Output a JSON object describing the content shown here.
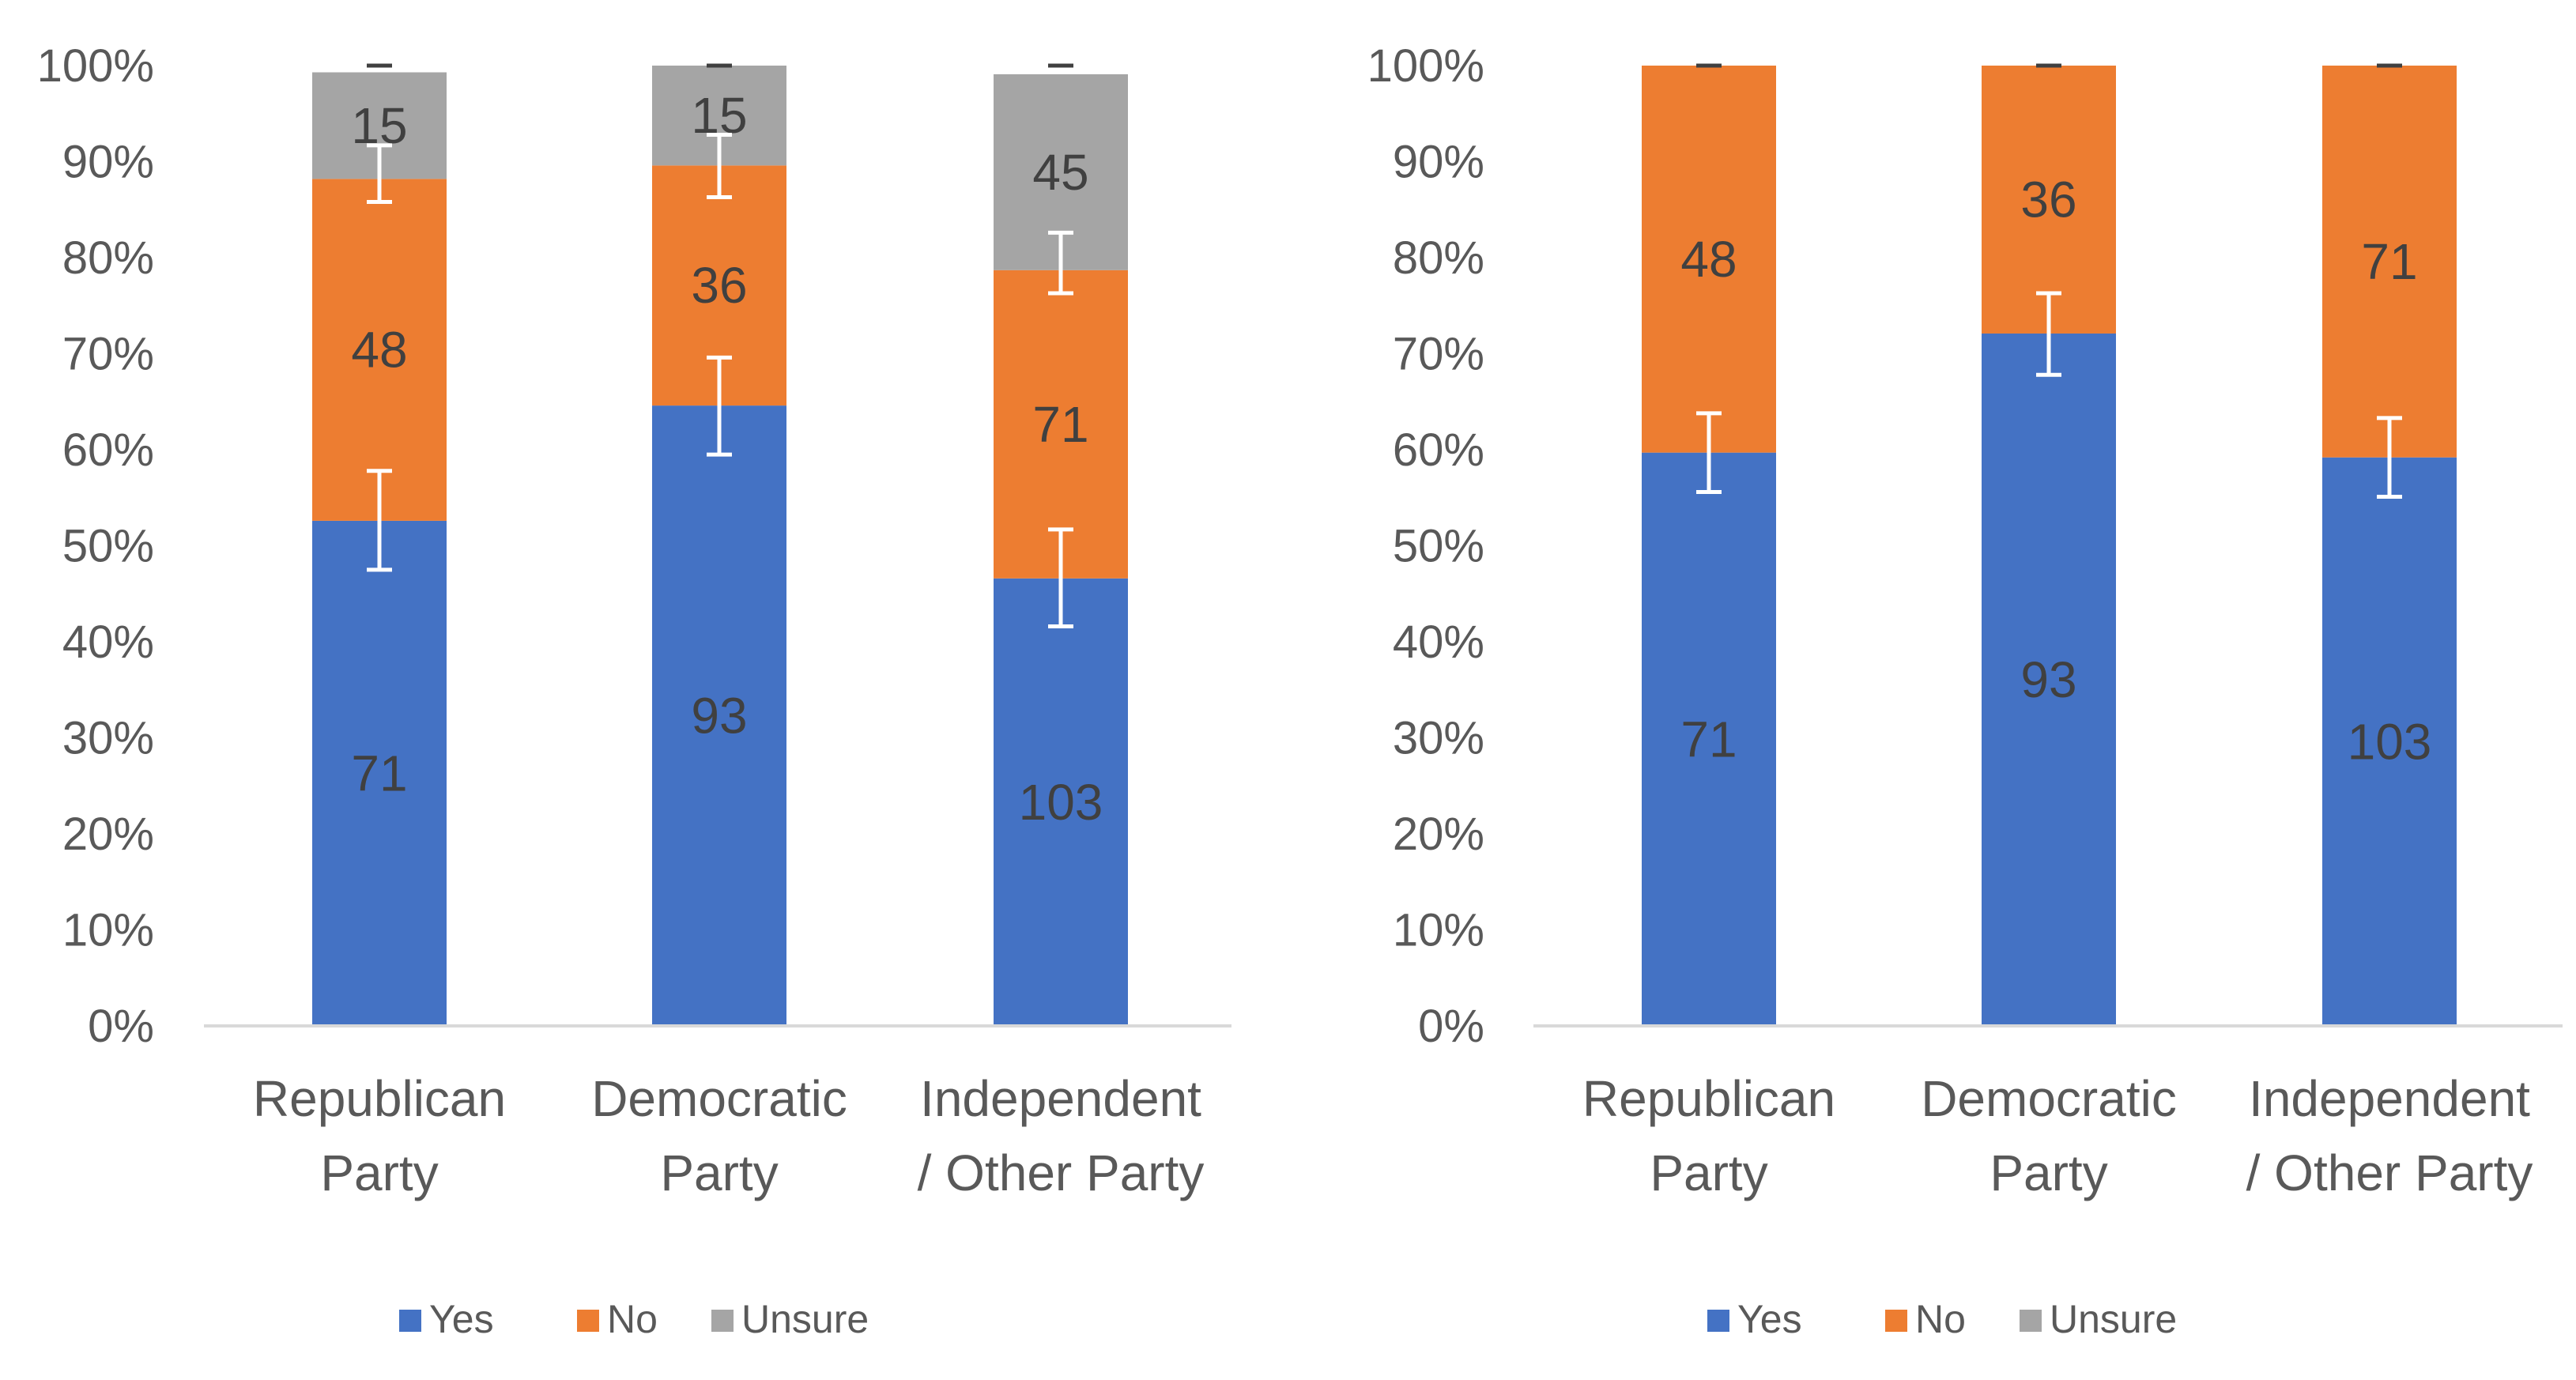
{
  "colors": {
    "yes": "#4472C4",
    "no": "#ED7D31",
    "unsure": "#A5A5A5",
    "axis_text": "#595959",
    "data_label": "#404040",
    "axis_line": "#D9D9D9",
    "error_bar": "#FFFFFF"
  },
  "chart_data": [
    {
      "type": "bar",
      "stacked": "percent",
      "title": "",
      "xlabel": "",
      "ylabel": "",
      "ylim": [
        0,
        100
      ],
      "y_ticks": [
        "0%",
        "10%",
        "20%",
        "30%",
        "40%",
        "50%",
        "60%",
        "70%",
        "80%",
        "90%",
        "100%"
      ],
      "categories": [
        [
          "Republican",
          "Party"
        ],
        [
          "Democratic",
          "Party"
        ],
        [
          "Independent",
          "/ Other Party"
        ]
      ],
      "legend": [
        "Yes",
        "No",
        "Unsure"
      ],
      "legend_position": "bottom",
      "series": [
        {
          "name": "Yes",
          "color_key": "yes",
          "counts": [
            71,
            93,
            103
          ],
          "percent": [
            52.6,
            64.6,
            46.6
          ],
          "error_low": [
            47.5,
            59.5,
            41.6
          ],
          "error_high": [
            57.8,
            69.6,
            51.7
          ]
        },
        {
          "name": "No",
          "color_key": "no",
          "counts": [
            48,
            36,
            71
          ],
          "percent": [
            35.6,
            25.0,
            32.1
          ],
          "error_low": [
            85.8,
            86.3,
            76.3
          ],
          "error_high": [
            91.7,
            92.8,
            82.6
          ]
        },
        {
          "name": "Unsure",
          "color_key": "unsure",
          "counts": [
            15,
            15,
            45
          ],
          "percent": [
            11.1,
            10.4,
            20.4
          ],
          "error_low": [
            100,
            100,
            100
          ],
          "error_high": [
            100,
            100,
            100
          ]
        }
      ]
    },
    {
      "type": "bar",
      "stacked": "percent",
      "title": "",
      "xlabel": "",
      "ylabel": "",
      "ylim": [
        0,
        100
      ],
      "y_ticks": [
        "0%",
        "10%",
        "20%",
        "30%",
        "40%",
        "50%",
        "60%",
        "70%",
        "80%",
        "90%",
        "100%"
      ],
      "categories": [
        [
          "Republican",
          "Party"
        ],
        [
          "Democratic",
          "Party"
        ],
        [
          "Independent",
          "/ Other Party"
        ]
      ],
      "legend": [
        "Yes",
        "No",
        "Unsure"
      ],
      "legend_position": "bottom",
      "series": [
        {
          "name": "Yes",
          "color_key": "yes",
          "counts": [
            71,
            93,
            103
          ],
          "percent": [
            59.7,
            72.1,
            59.2
          ],
          "error_low": [
            55.6,
            67.8,
            55.1
          ],
          "error_high": [
            63.8,
            76.3,
            63.3
          ]
        },
        {
          "name": "No",
          "color_key": "no",
          "counts": [
            48,
            36,
            71
          ],
          "percent": [
            40.3,
            27.9,
            40.8
          ],
          "error_low": [
            100,
            100,
            100
          ],
          "error_high": [
            100,
            100,
            100
          ]
        },
        {
          "name": "Unsure",
          "color_key": "unsure",
          "counts": [
            null,
            null,
            null
          ],
          "percent": [
            0,
            0,
            0
          ],
          "error_low": [
            100,
            100,
            100
          ],
          "error_high": [
            100,
            100,
            100
          ]
        }
      ]
    }
  ]
}
